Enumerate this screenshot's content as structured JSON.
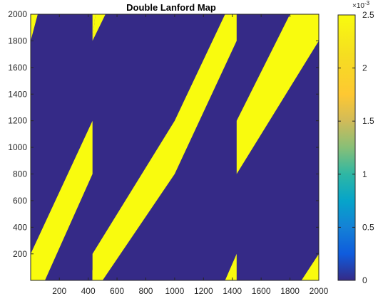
{
  "chart_data": {
    "type": "heatmap",
    "title": "Double Lanford Map",
    "xlabel": "",
    "ylabel": "",
    "xlim": [
      1,
      2000
    ],
    "ylim": [
      1,
      2000
    ],
    "x_ticks": [
      "200",
      "400",
      "600",
      "800",
      "1000",
      "1200",
      "1400",
      "1600",
      "1800",
      "2000"
    ],
    "y_ticks": [
      "200",
      "400",
      "600",
      "800",
      "1000",
      "1200",
      "1400",
      "1600",
      "1800",
      "2000"
    ],
    "colormap": "parula",
    "colors": {
      "low": "#352a87",
      "high": "#f9fb0e",
      "axes_edge": "#262626"
    },
    "colorbar": {
      "range": [
        0,
        2.5
      ],
      "exponent_label": "×10",
      "exponent_power": "-3",
      "tick_values": [
        0,
        0.5,
        1,
        1.5,
        2,
        2.5
      ],
      "tick_labels": [
        "0",
        "0.5",
        "1",
        "1.5",
        "2",
        "2.5"
      ]
    },
    "regions": [
      {
        "value": 0.0025,
        "polygon": [
          [
            1,
            1800
          ],
          [
            1,
            2000
          ],
          [
            50,
            2000
          ]
        ]
      },
      {
        "value": 0.0025,
        "polygon": [
          [
            1,
            1
          ],
          [
            1,
            200
          ],
          [
            430,
            1200
          ],
          [
            430,
            800
          ],
          [
            100,
            1
          ]
        ]
      },
      {
        "value": 0.0025,
        "polygon": [
          [
            430,
            1800
          ],
          [
            430,
            2000
          ],
          [
            450,
            2000
          ]
        ]
      },
      {
        "value": 0.0025,
        "polygon": [
          [
            430,
            1
          ],
          [
            430,
            80
          ],
          [
            450,
            1
          ]
        ]
      },
      {
        "value": 0.0025,
        "polygon": [
          [
            430,
            1800
          ],
          [
            520,
            2000
          ],
          [
            450,
            2000
          ]
        ]
      },
      {
        "value": 0.0025,
        "polygon": [
          [
            430,
            1
          ],
          [
            430,
            80
          ],
          [
            450,
            1
          ]
        ]
      },
      {
        "value": 0.0025,
        "polygon": [
          [
            430,
            1
          ],
          [
            430,
            200
          ],
          [
            1000,
            1200
          ],
          [
            1350,
            2000
          ],
          [
            1430,
            2000
          ],
          [
            1430,
            1800
          ],
          [
            1000,
            800
          ],
          [
            500,
            1
          ]
        ]
      },
      {
        "value": 0.0025,
        "polygon": [
          [
            1430,
            1
          ],
          [
            1350,
            1
          ],
          [
            1430,
            200
          ]
        ]
      },
      {
        "value": 0.0025,
        "polygon": [
          [
            1430,
            800
          ],
          [
            1430,
            1200
          ],
          [
            1800,
            2000
          ],
          [
            2000,
            2000
          ],
          [
            2000,
            1800
          ]
        ]
      },
      {
        "value": 0.0025,
        "polygon": [
          [
            2000,
            1
          ],
          [
            1880,
            1
          ],
          [
            2000,
            200
          ]
        ]
      }
    ]
  }
}
